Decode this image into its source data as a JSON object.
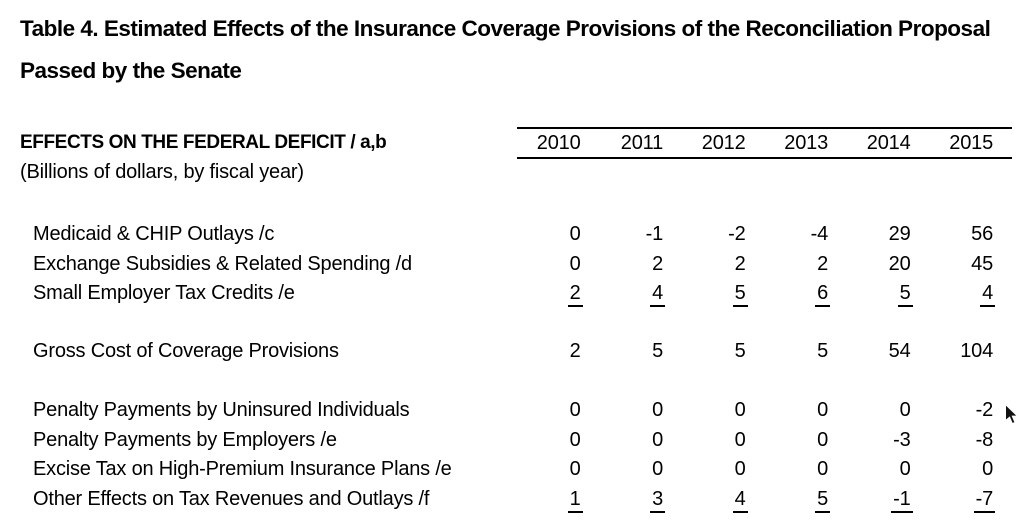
{
  "title": {
    "line1": "Table 4. Estimated Effects of the Insurance Coverage Provisions of the Reconciliation Proposal",
    "line2": "Passed by the Senate"
  },
  "table": {
    "header_label": "EFFECTS ON THE FEDERAL DEFICIT / a,b",
    "units_note": "(Billions of dollars, by fiscal year)",
    "years": [
      "2010",
      "2011",
      "2012",
      "2013",
      "2014",
      "2015"
    ],
    "rows": [
      {
        "label": "Medicaid & CHIP Outlays /c",
        "values": [
          "0",
          "-1",
          "-2",
          "-4",
          "29",
          "56"
        ],
        "underline": false,
        "gap_before": "a"
      },
      {
        "label": "Exchange Subsidies & Related Spending /d",
        "values": [
          "0",
          "2",
          "2",
          "2",
          "20",
          "45"
        ],
        "underline": false,
        "gap_before": null
      },
      {
        "label": "Small Employer Tax Credits /e",
        "values": [
          "2",
          "4",
          "5",
          "6",
          "5",
          "4"
        ],
        "underline": true,
        "gap_before": null
      },
      {
        "label": "Gross Cost of Coverage Provisions",
        "values": [
          "2",
          "5",
          "5",
          "5",
          "54",
          "104"
        ],
        "underline": false,
        "gap_before": "b"
      },
      {
        "label": "Penalty Payments by Uninsured Individuals",
        "values": [
          "0",
          "0",
          "0",
          "0",
          "0",
          "-2"
        ],
        "underline": false,
        "gap_before": "c"
      },
      {
        "label": "Penalty Payments by Employers /e",
        "values": [
          "0",
          "0",
          "0",
          "0",
          "-3",
          "-8"
        ],
        "underline": false,
        "gap_before": null
      },
      {
        "label": "Excise Tax on High-Premium Insurance Plans /e",
        "values": [
          "0",
          "0",
          "0",
          "0",
          "0",
          "0"
        ],
        "underline": false,
        "gap_before": null
      },
      {
        "label": "Other Effects on Tax Revenues and Outlays /f",
        "values": [
          "1",
          "3",
          "4",
          "5",
          "-1",
          "-7"
        ],
        "underline": true,
        "gap_before": null
      }
    ]
  },
  "colors": {
    "text": "#000000",
    "background": "#ffffff",
    "rule": "#000000"
  },
  "cursor": {
    "visible": true
  }
}
